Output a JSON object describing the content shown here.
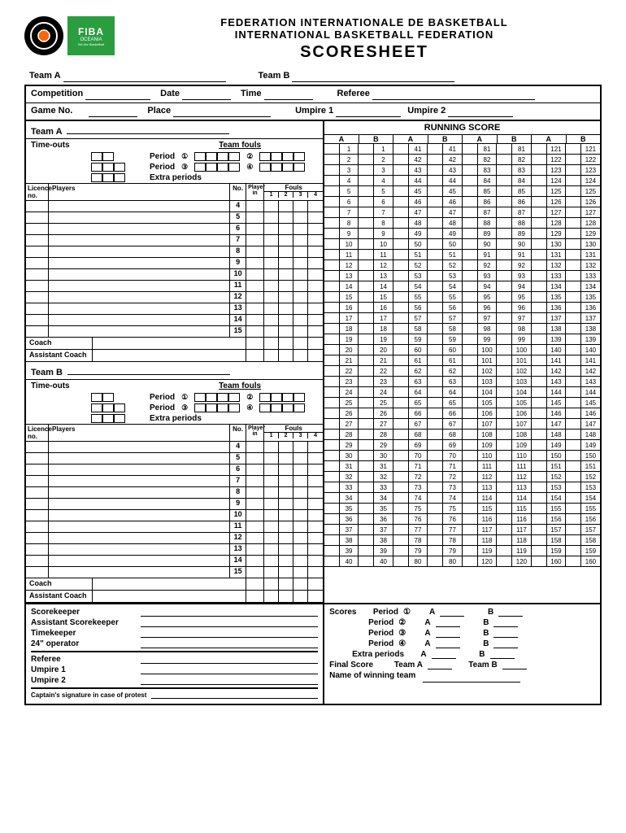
{
  "header": {
    "line1": "FEDERATION  INTERNATIONALE  DE  BASKETBALL",
    "line2": "INTERNATIONAL  BASKETBALL  FEDERATION",
    "title": "SCORESHEET",
    "logo_fiba": "FIBA",
    "logo_oceania": "OCEANIA",
    "logo_tag": "We Are Basketball"
  },
  "labels": {
    "team_a": "Team A",
    "team_b": "Team B",
    "competition": "Competition",
    "date": "Date",
    "time": "Time",
    "referee": "Referee",
    "game_no": "Game No.",
    "place": "Place",
    "umpire1": "Umpire 1",
    "umpire2": "Umpire 2",
    "timeouts": "Time-outs",
    "team_fouls": "Team fouls",
    "period": "Period",
    "extra_periods": "Extra periods",
    "licence_no": "Licence\nno.",
    "players": "Players",
    "no": "No.",
    "player_in": "Player\nin",
    "fouls": "Fouls",
    "coach": "Coach",
    "assistant_coach": "Assistant Coach",
    "running_score": "RUNNING SCORE",
    "a": "A",
    "b": "B",
    "scorekeeper": "Scorekeeper",
    "assistant_scorekeeper": "Assistant Scorekeeper",
    "timekeeper": "Timekeeper",
    "operator24": "24\" operator",
    "scores": "Scores",
    "final_score": "Final Score",
    "winning_team": "Name of winning team",
    "captain_sig": "Captain's signature in case of protest"
  },
  "circled": {
    "1": "①",
    "2": "②",
    "3": "③",
    "4": "④"
  },
  "player_numbers": [
    "4",
    "5",
    "6",
    "7",
    "8",
    "9",
    "10",
    "11",
    "12",
    "13",
    "14",
    "15"
  ],
  "foul_cols": [
    "1",
    "2",
    "3",
    "4"
  ],
  "running_score": {
    "cols": 4,
    "rows_per_col": 40,
    "start": 1,
    "end": 160
  },
  "colors": {
    "green": "#2a9d3f",
    "black": "#000000",
    "white": "#ffffff"
  }
}
